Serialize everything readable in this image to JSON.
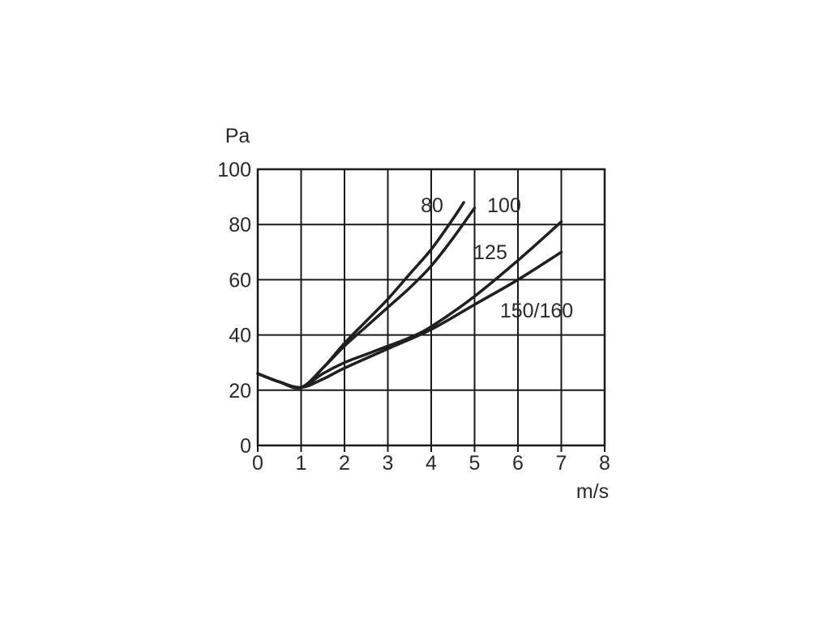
{
  "chart_data": {
    "type": "line",
    "title": "",
    "xlabel": "m/s",
    "ylabel": "Pa",
    "xlim": [
      0,
      8
    ],
    "ylim": [
      0,
      100
    ],
    "x_ticks": [
      "0",
      "1",
      "2",
      "3",
      "4",
      "5",
      "6",
      "7",
      "8"
    ],
    "y_ticks": [
      "0",
      "20",
      "40",
      "60",
      "80",
      "100"
    ],
    "grid": true,
    "series": [
      {
        "name": "80",
        "points": [
          [
            0,
            26
          ],
          [
            0.5,
            23
          ],
          [
            1,
            21
          ],
          [
            1.5,
            28
          ],
          [
            2,
            37
          ],
          [
            2.5,
            45
          ],
          [
            3,
            53
          ],
          [
            3.5,
            62
          ],
          [
            4,
            71
          ],
          [
            4.5,
            82
          ],
          [
            4.75,
            88
          ]
        ]
      },
      {
        "name": "100",
        "points": [
          [
            0,
            26
          ],
          [
            0.5,
            23
          ],
          [
            1,
            21
          ],
          [
            1.5,
            28
          ],
          [
            2,
            36
          ],
          [
            2.5,
            43
          ],
          [
            3,
            50
          ],
          [
            3.5,
            57
          ],
          [
            4,
            65
          ],
          [
            4.5,
            75
          ],
          [
            5,
            86
          ]
        ]
      },
      {
        "name": "125",
        "points": [
          [
            0,
            26
          ],
          [
            0.5,
            23
          ],
          [
            1,
            21
          ],
          [
            1.5,
            26
          ],
          [
            2,
            30
          ],
          [
            2.5,
            33
          ],
          [
            3,
            36
          ],
          [
            3.5,
            39
          ],
          [
            4,
            43
          ],
          [
            5,
            54
          ],
          [
            6,
            67
          ],
          [
            7,
            81
          ]
        ]
      },
      {
        "name": "150/160",
        "points": [
          [
            0,
            26
          ],
          [
            0.5,
            23
          ],
          [
            1,
            21
          ],
          [
            1.5,
            24
          ],
          [
            2,
            28
          ],
          [
            3,
            35
          ],
          [
            4,
            42
          ],
          [
            5,
            51
          ],
          [
            6,
            60
          ],
          [
            7,
            70
          ]
        ]
      }
    ]
  }
}
